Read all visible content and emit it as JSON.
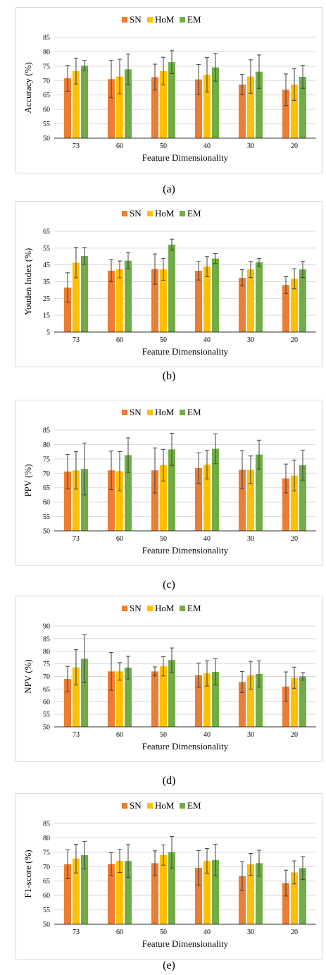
{
  "series_colors": {
    "SN": "#ed7d31",
    "HoM": "#ffc000",
    "EM": "#70ad47"
  },
  "charts": [
    {
      "caption": "(a)"
    },
    {
      "caption": "(b)"
    },
    {
      "caption": "(c)"
    },
    {
      "caption": "(d)"
    },
    {
      "caption": "(e)"
    }
  ],
  "chart_data": [
    {
      "type": "bar",
      "ylabel": "Accuracy (%)",
      "xlabel": "Feature Dimensionality",
      "categories": [
        "73",
        "60",
        "50",
        "40",
        "30",
        "20"
      ],
      "ylim": [
        50,
        85
      ],
      "yticks": [
        50,
        55,
        60,
        65,
        70,
        75,
        80,
        85
      ],
      "grid": true,
      "legend": "top-center",
      "series": [
        {
          "name": "SN",
          "values": [
            70.8,
            70.5,
            71.2,
            70.4,
            68.6,
            66.8
          ],
          "errors": [
            4.5,
            6.5,
            4.5,
            5.2,
            3.5,
            5.5
          ]
        },
        {
          "name": "HoM",
          "values": [
            73.3,
            71.4,
            73.3,
            72.0,
            71.4,
            68.6
          ],
          "errors": [
            4.5,
            6.0,
            4.8,
            6.0,
            5.8,
            5.5
          ]
        },
        {
          "name": "EM",
          "values": [
            75.2,
            73.9,
            76.4,
            74.6,
            73.1,
            71.3
          ],
          "errors": [
            1.8,
            5.3,
            4.0,
            4.8,
            5.8,
            4.0
          ]
        }
      ]
    },
    {
      "type": "bar",
      "ylabel": "Youden Index (%)",
      "xlabel": "Feature Dimensionality",
      "categories": [
        "73",
        "60",
        "50",
        "40",
        "30",
        "20"
      ],
      "ylim": [
        5,
        65
      ],
      "yticks": [
        5,
        15,
        25,
        35,
        45,
        55,
        65
      ],
      "grid": true,
      "legend": "top-center",
      "series": [
        {
          "name": "SN",
          "values": [
            31.5,
            41.5,
            42.5,
            41.5,
            37.3,
            33.0
          ],
          "errors": [
            8.8,
            6.5,
            9.0,
            5.5,
            4.8,
            5.0
          ]
        },
        {
          "name": "HoM",
          "values": [
            46.3,
            42.3,
            42.3,
            44.0,
            42.3,
            36.7
          ],
          "errors": [
            9.0,
            5.0,
            6.5,
            6.0,
            4.8,
            6.0
          ]
        },
        {
          "name": "EM",
          "values": [
            50.3,
            47.5,
            57.0,
            48.8,
            46.5,
            42.3
          ],
          "errors": [
            5.0,
            4.8,
            3.3,
            3.0,
            2.3,
            4.8
          ]
        }
      ]
    },
    {
      "type": "bar",
      "ylabel": "PPV (%)",
      "xlabel": "Feature Dimensionality",
      "categories": [
        "73",
        "60",
        "50",
        "40",
        "30",
        "20"
      ],
      "ylim": [
        50,
        85
      ],
      "yticks": [
        50,
        55,
        60,
        65,
        70,
        75,
        80,
        85
      ],
      "grid": true,
      "legend": "top-center",
      "series": [
        {
          "name": "SN",
          "values": [
            70.6,
            71.0,
            71.0,
            71.8,
            71.2,
            68.2
          ],
          "errors": [
            6.0,
            6.7,
            7.8,
            5.3,
            6.6,
            5.0
          ]
        },
        {
          "name": "HoM",
          "values": [
            71.0,
            70.7,
            72.8,
            73.0,
            71.2,
            69.2
          ],
          "errors": [
            6.5,
            6.8,
            5.5,
            5.0,
            4.8,
            5.3
          ]
        },
        {
          "name": "EM",
          "values": [
            71.5,
            76.3,
            78.3,
            78.5,
            76.5,
            72.8
          ],
          "errors": [
            9.0,
            6.0,
            5.6,
            5.2,
            5.0,
            5.2
          ]
        }
      ]
    },
    {
      "type": "bar",
      "ylabel": "NPV (%)",
      "xlabel": "Feature Dimensionality",
      "categories": [
        "73",
        "60",
        "50",
        "40",
        "30",
        "20"
      ],
      "ylim": [
        50,
        90
      ],
      "yticks": [
        50,
        55,
        60,
        65,
        70,
        75,
        80,
        85,
        90
      ],
      "grid": true,
      "legend": "top-center",
      "series": [
        {
          "name": "SN",
          "values": [
            69.0,
            72.0,
            72.0,
            70.5,
            67.8,
            66.0
          ],
          "errors": [
            5.0,
            7.5,
            1.8,
            4.8,
            4.2,
            5.8
          ]
        },
        {
          "name": "HoM",
          "values": [
            73.6,
            72.0,
            74.0,
            71.2,
            70.5,
            69.5
          ],
          "errors": [
            7.0,
            3.5,
            3.8,
            5.0,
            5.5,
            4.2
          ]
        },
        {
          "name": "EM",
          "values": [
            77.0,
            73.5,
            76.5,
            71.8,
            71.0,
            70.0
          ],
          "errors": [
            9.5,
            4.5,
            4.8,
            5.2,
            5.2,
            1.5
          ]
        }
      ]
    },
    {
      "type": "bar",
      "ylabel": "F1-score (%)",
      "xlabel": "Feature Dimensionality",
      "categories": [
        "73",
        "60",
        "50",
        "40",
        "30",
        "20"
      ],
      "ylim": [
        50,
        85
      ],
      "yticks": [
        50,
        55,
        60,
        65,
        70,
        75,
        80,
        85
      ],
      "grid": true,
      "legend": "top-center",
      "series": [
        {
          "name": "SN",
          "values": [
            70.8,
            70.9,
            71.2,
            69.6,
            66.7,
            64.3
          ],
          "errors": [
            5.0,
            4.0,
            4.3,
            6.0,
            5.0,
            4.5
          ]
        },
        {
          "name": "HoM",
          "values": [
            72.8,
            72.0,
            74.0,
            72.0,
            70.8,
            68.0
          ],
          "errors": [
            5.0,
            4.0,
            3.5,
            4.3,
            3.8,
            4.0
          ]
        },
        {
          "name": "EM",
          "values": [
            74.0,
            72.0,
            75.0,
            72.3,
            71.2,
            69.5
          ],
          "errors": [
            4.8,
            5.7,
            5.5,
            5.5,
            4.5,
            4.0
          ]
        }
      ]
    }
  ]
}
